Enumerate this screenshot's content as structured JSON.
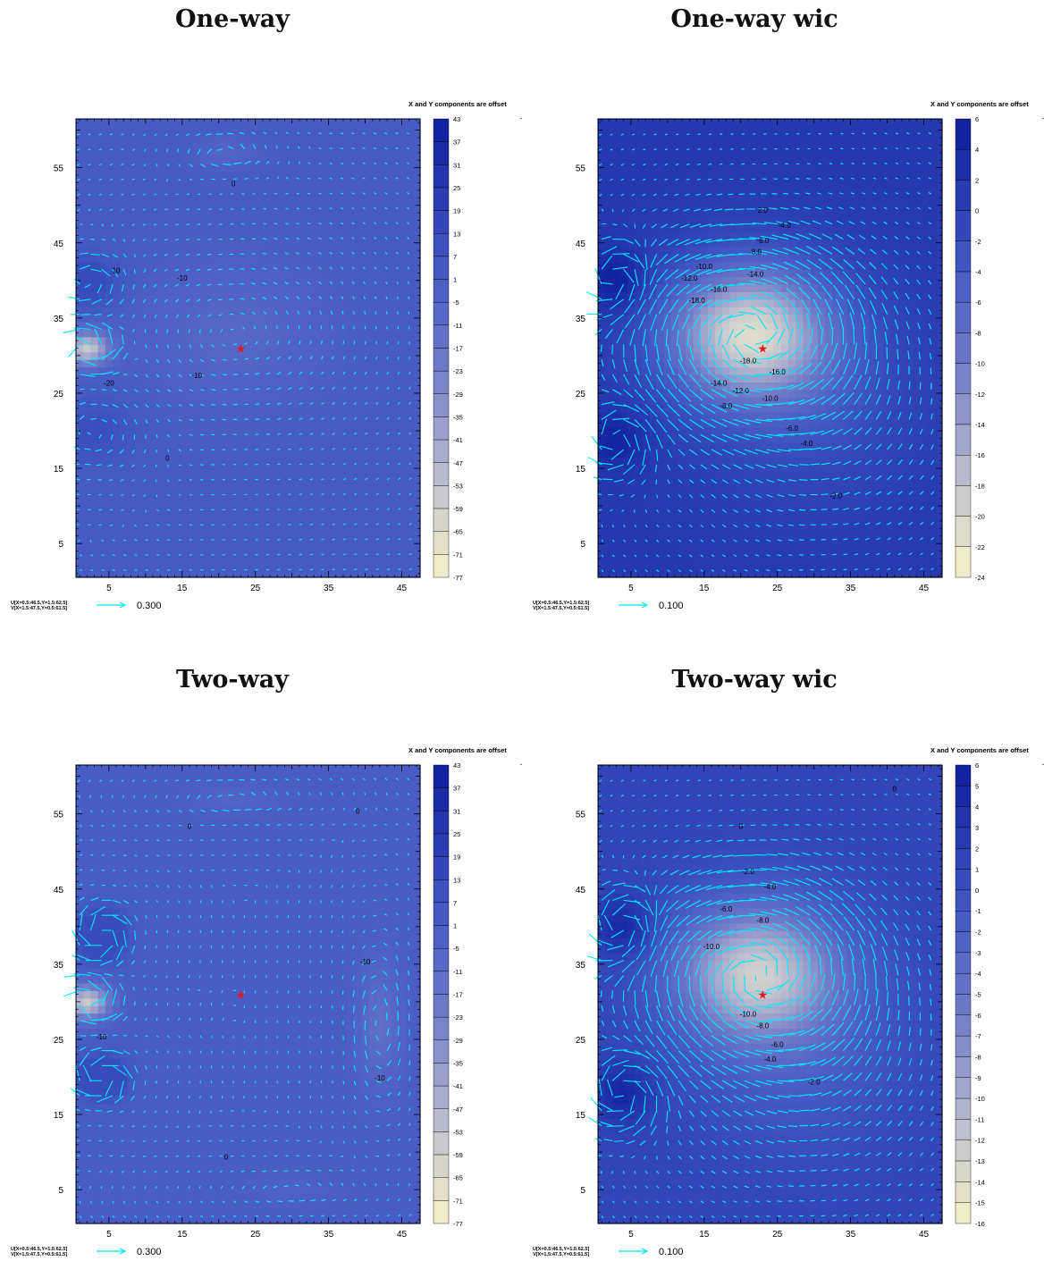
{
  "note": "X and Y components are offset",
  "uv_label_u": "U[X=0.5:46.5,Y=1.5:62.5]",
  "uv_label_v": "V[X=1.5:47.5,Y=0.5:61.5]",
  "colors": {
    "vector": "#00e8ff",
    "star": "#e8161a",
    "contour": "#000000"
  },
  "chart_data": [
    {
      "type": "heatmap",
      "title": "One-way",
      "xticks": [
        5,
        15,
        25,
        35,
        45
      ],
      "yticks": [
        5,
        15,
        25,
        35,
        45,
        55
      ],
      "xlim": [
        0.5,
        47.5
      ],
      "ylim": [
        0.5,
        61.5
      ],
      "colorbar": [
        43,
        37,
        31,
        25,
        19,
        13,
        7,
        1,
        -5,
        -11,
        -17,
        -23,
        -29,
        -35,
        -41,
        -47,
        -53,
        -59,
        -65,
        -71,
        -77
      ],
      "vector_scale": "0.300",
      "star": [
        23,
        31
      ],
      "contour_labels": [
        {
          "text": "0",
          "x": 22,
          "y": 52.5
        },
        {
          "text": "10",
          "x": 6,
          "y": 41
        },
        {
          "text": "-10",
          "x": 15,
          "y": 40
        },
        {
          "text": "-20",
          "x": 5,
          "y": 26
        },
        {
          "text": "-10",
          "x": 17,
          "y": 27
        },
        {
          "text": "0",
          "x": 13,
          "y": 16
        }
      ]
    },
    {
      "type": "heatmap",
      "title": "One-way wic",
      "xticks": [
        5,
        15,
        25,
        35,
        45
      ],
      "yticks": [
        5,
        15,
        25,
        35,
        45,
        55
      ],
      "xlim": [
        0.5,
        47.5
      ],
      "ylim": [
        0.5,
        61.5
      ],
      "colorbar": [
        6,
        4,
        2,
        0,
        -2,
        -4,
        -6,
        -8,
        -10,
        -12,
        -14,
        -16,
        -18,
        -20,
        -22,
        -24
      ],
      "vector_scale": "0.100",
      "star": [
        23,
        31
      ],
      "contour_labels": [
        {
          "text": "2.0",
          "x": 23,
          "y": 49
        },
        {
          "text": "-4.0",
          "x": 26,
          "y": 47
        },
        {
          "text": "-6.0",
          "x": 23,
          "y": 45
        },
        {
          "text": "-8.0",
          "x": 22,
          "y": 43.5
        },
        {
          "text": "-10.0",
          "x": 15,
          "y": 41.5
        },
        {
          "text": "-12.0",
          "x": 13,
          "y": 40
        },
        {
          "text": "-14.0",
          "x": 22,
          "y": 40.5
        },
        {
          "text": "-16.0",
          "x": 17,
          "y": 38.5
        },
        {
          "text": "-18.0",
          "x": 14,
          "y": 37
        },
        {
          "text": "-18.0",
          "x": 21,
          "y": 29
        },
        {
          "text": "-16.0",
          "x": 25,
          "y": 27.5
        },
        {
          "text": "-14.0",
          "x": 17,
          "y": 26
        },
        {
          "text": "-12.0",
          "x": 20,
          "y": 25
        },
        {
          "text": "-10.0",
          "x": 24,
          "y": 24
        },
        {
          "text": "-8.0",
          "x": 18,
          "y": 23
        },
        {
          "text": "-6.0",
          "x": 27,
          "y": 20
        },
        {
          "text": "-4.0",
          "x": 29,
          "y": 18
        },
        {
          "text": "-2.0",
          "x": 33,
          "y": 11
        }
      ]
    },
    {
      "type": "heatmap",
      "title": "Two-way",
      "xticks": [
        5,
        15,
        25,
        35,
        45
      ],
      "yticks": [
        5,
        15,
        25,
        35,
        45,
        55
      ],
      "xlim": [
        0.5,
        47.5
      ],
      "ylim": [
        0.5,
        61.5
      ],
      "colorbar": [
        43,
        37,
        31,
        25,
        19,
        13,
        7,
        1,
        -5,
        -11,
        -17,
        -23,
        -29,
        -35,
        -41,
        -47,
        -53,
        -59,
        -65,
        -71,
        -77
      ],
      "vector_scale": "0.300",
      "star": [
        23,
        31
      ],
      "contour_labels": [
        {
          "text": "0",
          "x": 16,
          "y": 53
        },
        {
          "text": "0",
          "x": 39,
          "y": 55
        },
        {
          "text": "-10",
          "x": 40,
          "y": 35
        },
        {
          "text": "-10",
          "x": 42,
          "y": 19.5
        },
        {
          "text": "-10",
          "x": 4,
          "y": 25
        },
        {
          "text": "0",
          "x": 21,
          "y": 9
        }
      ]
    },
    {
      "type": "heatmap",
      "title": "Two-way wic",
      "xticks": [
        5,
        15,
        25,
        35,
        45
      ],
      "yticks": [
        5,
        15,
        25,
        35,
        45,
        55
      ],
      "xlim": [
        0.5,
        47.5
      ],
      "ylim": [
        0.5,
        61.5
      ],
      "colorbar": [
        6,
        5,
        4,
        3,
        2,
        1,
        0,
        -1,
        -2,
        -3,
        -4,
        -5,
        -6,
        -7,
        -8,
        -9,
        -10,
        -11,
        -12,
        -13,
        -14,
        -15,
        -16
      ],
      "vector_scale": "0.100",
      "star": [
        23,
        31
      ],
      "contour_labels": [
        {
          "text": "0",
          "x": 20,
          "y": 53
        },
        {
          "text": "0",
          "x": 41,
          "y": 58
        },
        {
          "text": "-2.0",
          "x": 21,
          "y": 47
        },
        {
          "text": "-4.0",
          "x": 24,
          "y": 45
        },
        {
          "text": "-6.0",
          "x": 18,
          "y": 42
        },
        {
          "text": "-8.0",
          "x": 23,
          "y": 40.5
        },
        {
          "text": "-10.0",
          "x": 16,
          "y": 37
        },
        {
          "text": "-10.0",
          "x": 21,
          "y": 28
        },
        {
          "text": "-8.0",
          "x": 23,
          "y": 26.5
        },
        {
          "text": "-6.0",
          "x": 25,
          "y": 24
        },
        {
          "text": "-4.0",
          "x": 24,
          "y": 22
        },
        {
          "text": "-2.0",
          "x": 30,
          "y": 19
        }
      ]
    }
  ]
}
